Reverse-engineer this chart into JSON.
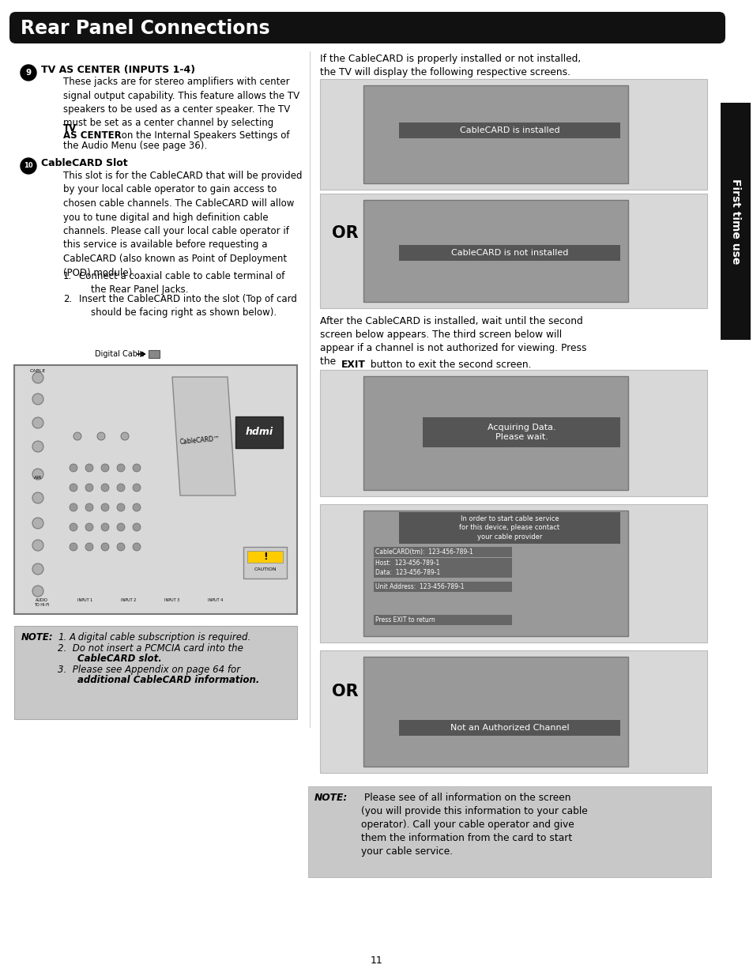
{
  "title": "Rear Panel Connections",
  "page_bg": "#ffffff",
  "header_color": "#111111",
  "header_text_color": "#ffffff",
  "sidebar_text": "First time use",
  "sidebar_color": "#111111",
  "sidebar_text_color": "#ffffff",
  "section9_title": "TV AS CENTER (INPUTS 1-4)",
  "section9_body1": "These jacks are for stereo amplifiers with center\nsignal output capability. This feature allows the TV\nspeakers to be used as a center speaker. The TV\nmust be set as a center channel by selecting ",
  "section9_body2_bold": "TV\nAS CENTER",
  "section9_body3": " on the Internal Speakers Settings of\nthe Audio Menu (see page 36).",
  "section10_title": "CableCARD Slot",
  "section10_body": "This slot is for the CableCARD that will be provided\nby your local cable operator to gain access to\nchosen cable channels. The CableCARD will allow\nyou to tune digital and high definition cable\nchannels. Please call your local cable operator if\nthis service is available before requesting a\nCableCARD (also known as Point of Deployment\n(POD) module).",
  "list1": "Connect a coaxial cable to cable terminal of\nthe Rear Panel Jacks.",
  "list2": "Insert the CableCARD into the slot (Top of card\nshould be facing right as shown below).",
  "right_intro": "If the CableCARD is properly installed or not installed,\nthe TV will display the following respective screens.",
  "screen1_label": "CableCARD is installed",
  "or_label": "OR",
  "screen2_label": "CableCARD is not installed",
  "right_after1": "After the CableCARD is installed, wait until the second\nscreen below appears. The third screen below will\nappear if a channel is not authorized for viewing. Press\nthe ",
  "right_after_bold": "EXIT",
  "right_after2": " button to exit the second screen.",
  "screen3_label": "Acquiring Data.\nPlease wait.",
  "screen5_label": "Not an Authorized Channel",
  "note_left_lines": [
    [
      "NOTE:  ",
      true,
      false
    ],
    [
      "1.  ",
      false,
      false
    ],
    [
      "A digital cable subscription is required.",
      false,
      true
    ],
    [
      "2.  Do not insert a PCMCIA card into the",
      false,
      true
    ],
    [
      "CableCARD slot.",
      true,
      true
    ],
    [
      "3.  Please see Appendix on page 64 for",
      false,
      true
    ],
    [
      "additional CableCARD information.",
      true,
      true
    ]
  ],
  "note_bg": "#c8c8c8",
  "bottom_note_bg": "#c8c8c8",
  "screen_outer_bg": "#c8c8c8",
  "screen_inner_bg": "#999999",
  "screen_bar_bg": "#666666",
  "screen_bar_text": "#ffffff",
  "page_number": "11"
}
